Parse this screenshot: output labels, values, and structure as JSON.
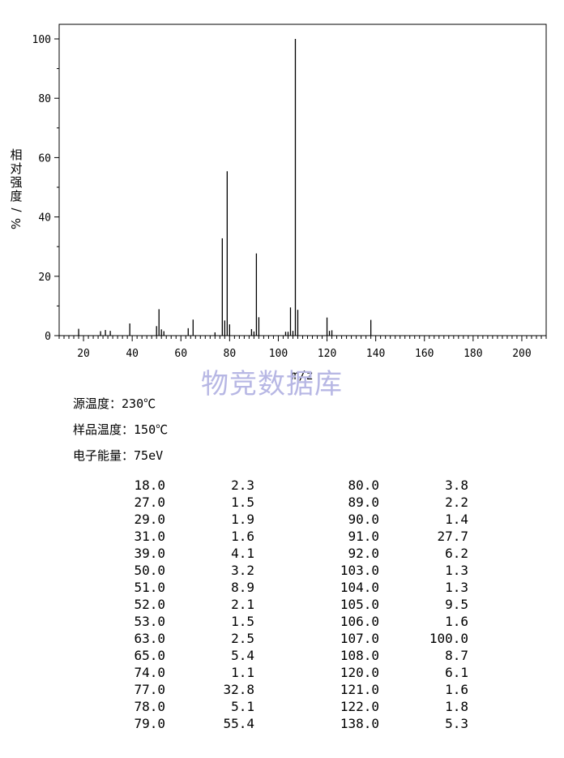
{
  "chart_data": {
    "type": "bar",
    "title": "",
    "xlabel": "m/z",
    "ylabel": "相对强度/%",
    "xlim": [
      10,
      210
    ],
    "ylim": [
      0,
      105
    ],
    "x_ticks": [
      20,
      40,
      60,
      80,
      100,
      120,
      140,
      160,
      180,
      200
    ],
    "y_ticks": [
      0,
      20,
      40,
      60,
      80,
      100
    ],
    "grid": false,
    "x": [
      18.0,
      27.0,
      29.0,
      31.0,
      39.0,
      50.0,
      51.0,
      52.0,
      53.0,
      63.0,
      65.0,
      74.0,
      77.0,
      78.0,
      79.0,
      80.0,
      89.0,
      90.0,
      91.0,
      92.0,
      103.0,
      104.0,
      105.0,
      106.0,
      107.0,
      108.0,
      120.0,
      121.0,
      122.0,
      138.0
    ],
    "values": [
      2.3,
      1.5,
      1.9,
      1.6,
      4.1,
      3.2,
      8.9,
      2.1,
      1.5,
      2.5,
      5.4,
      1.1,
      32.8,
      5.1,
      55.4,
      3.8,
      2.2,
      1.4,
      27.7,
      6.2,
      1.3,
      1.3,
      9.5,
      1.6,
      100.0,
      8.7,
      6.1,
      1.6,
      1.8,
      5.3
    ],
    "bar_color": "#000000"
  },
  "watermark": "物竞数据库",
  "conditions": [
    {
      "label": "源温度：",
      "value": "230℃"
    },
    {
      "label": "样品温度：",
      "value": "150℃"
    },
    {
      "label": "电子能量：",
      "value": "75eV"
    }
  ],
  "peak_table": {
    "left": [
      [
        "18.0",
        "2.3"
      ],
      [
        "27.0",
        "1.5"
      ],
      [
        "29.0",
        "1.9"
      ],
      [
        "31.0",
        "1.6"
      ],
      [
        "39.0",
        "4.1"
      ],
      [
        "50.0",
        "3.2"
      ],
      [
        "51.0",
        "8.9"
      ],
      [
        "52.0",
        "2.1"
      ],
      [
        "53.0",
        "1.5"
      ],
      [
        "63.0",
        "2.5"
      ],
      [
        "65.0",
        "5.4"
      ],
      [
        "74.0",
        "1.1"
      ],
      [
        "77.0",
        "32.8"
      ],
      [
        "78.0",
        "5.1"
      ],
      [
        "79.0",
        "55.4"
      ]
    ],
    "right": [
      [
        "80.0",
        "3.8"
      ],
      [
        "89.0",
        "2.2"
      ],
      [
        "90.0",
        "1.4"
      ],
      [
        "91.0",
        "27.7"
      ],
      [
        "92.0",
        "6.2"
      ],
      [
        "103.0",
        "1.3"
      ],
      [
        "104.0",
        "1.3"
      ],
      [
        "105.0",
        "9.5"
      ],
      [
        "106.0",
        "1.6"
      ],
      [
        "107.0",
        "100.0"
      ],
      [
        "108.0",
        "8.7"
      ],
      [
        "120.0",
        "6.1"
      ],
      [
        "121.0",
        "1.6"
      ],
      [
        "122.0",
        "1.8"
      ],
      [
        "138.0",
        "5.3"
      ]
    ]
  }
}
